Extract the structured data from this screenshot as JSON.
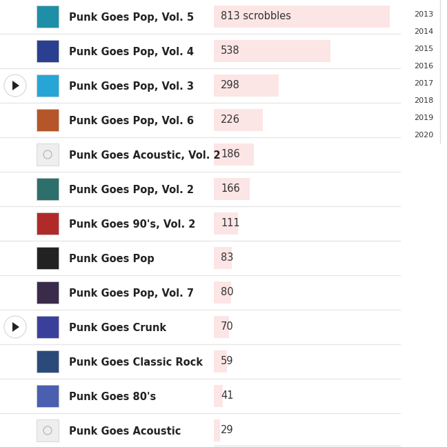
{
  "chart_data": {
    "type": "bar",
    "orientation": "horizontal",
    "categories": [
      "Punk Goes Pop, Vol. 5",
      "Punk Goes Pop, Vol. 4",
      "Punk Goes Pop, Vol. 3",
      "Punk Goes Pop, Vol. 6",
      "Punk Goes Acoustic, Vol. 2",
      "Punk Goes Pop, Vol. 2",
      "Punk Goes 90's, Vol. 2",
      "Punk Goes Pop",
      "Punk Goes Pop, Vol. 7",
      "Punk Goes Crunk",
      "Punk Goes Classic Rock",
      "Punk Goes 80's",
      "Punk Goes Acoustic"
    ],
    "values": [
      813,
      538,
      298,
      226,
      186,
      166,
      111,
      83,
      80,
      70,
      59,
      41,
      29
    ],
    "value_labels": [
      "813 scrobbles",
      "538",
      "298",
      "226",
      "186",
      "166",
      "111",
      "83",
      "80",
      "70",
      "59",
      "41",
      "29"
    ],
    "color": "#fce5e5",
    "data_labels": true,
    "tick_labels": "y",
    "xlim": [
      0,
      860
    ],
    "xticks": [],
    "annotations": [
      "2013",
      "2014",
      "2015",
      "2016",
      "2017",
      "2018",
      "2019",
      "2020"
    ]
  }
}
